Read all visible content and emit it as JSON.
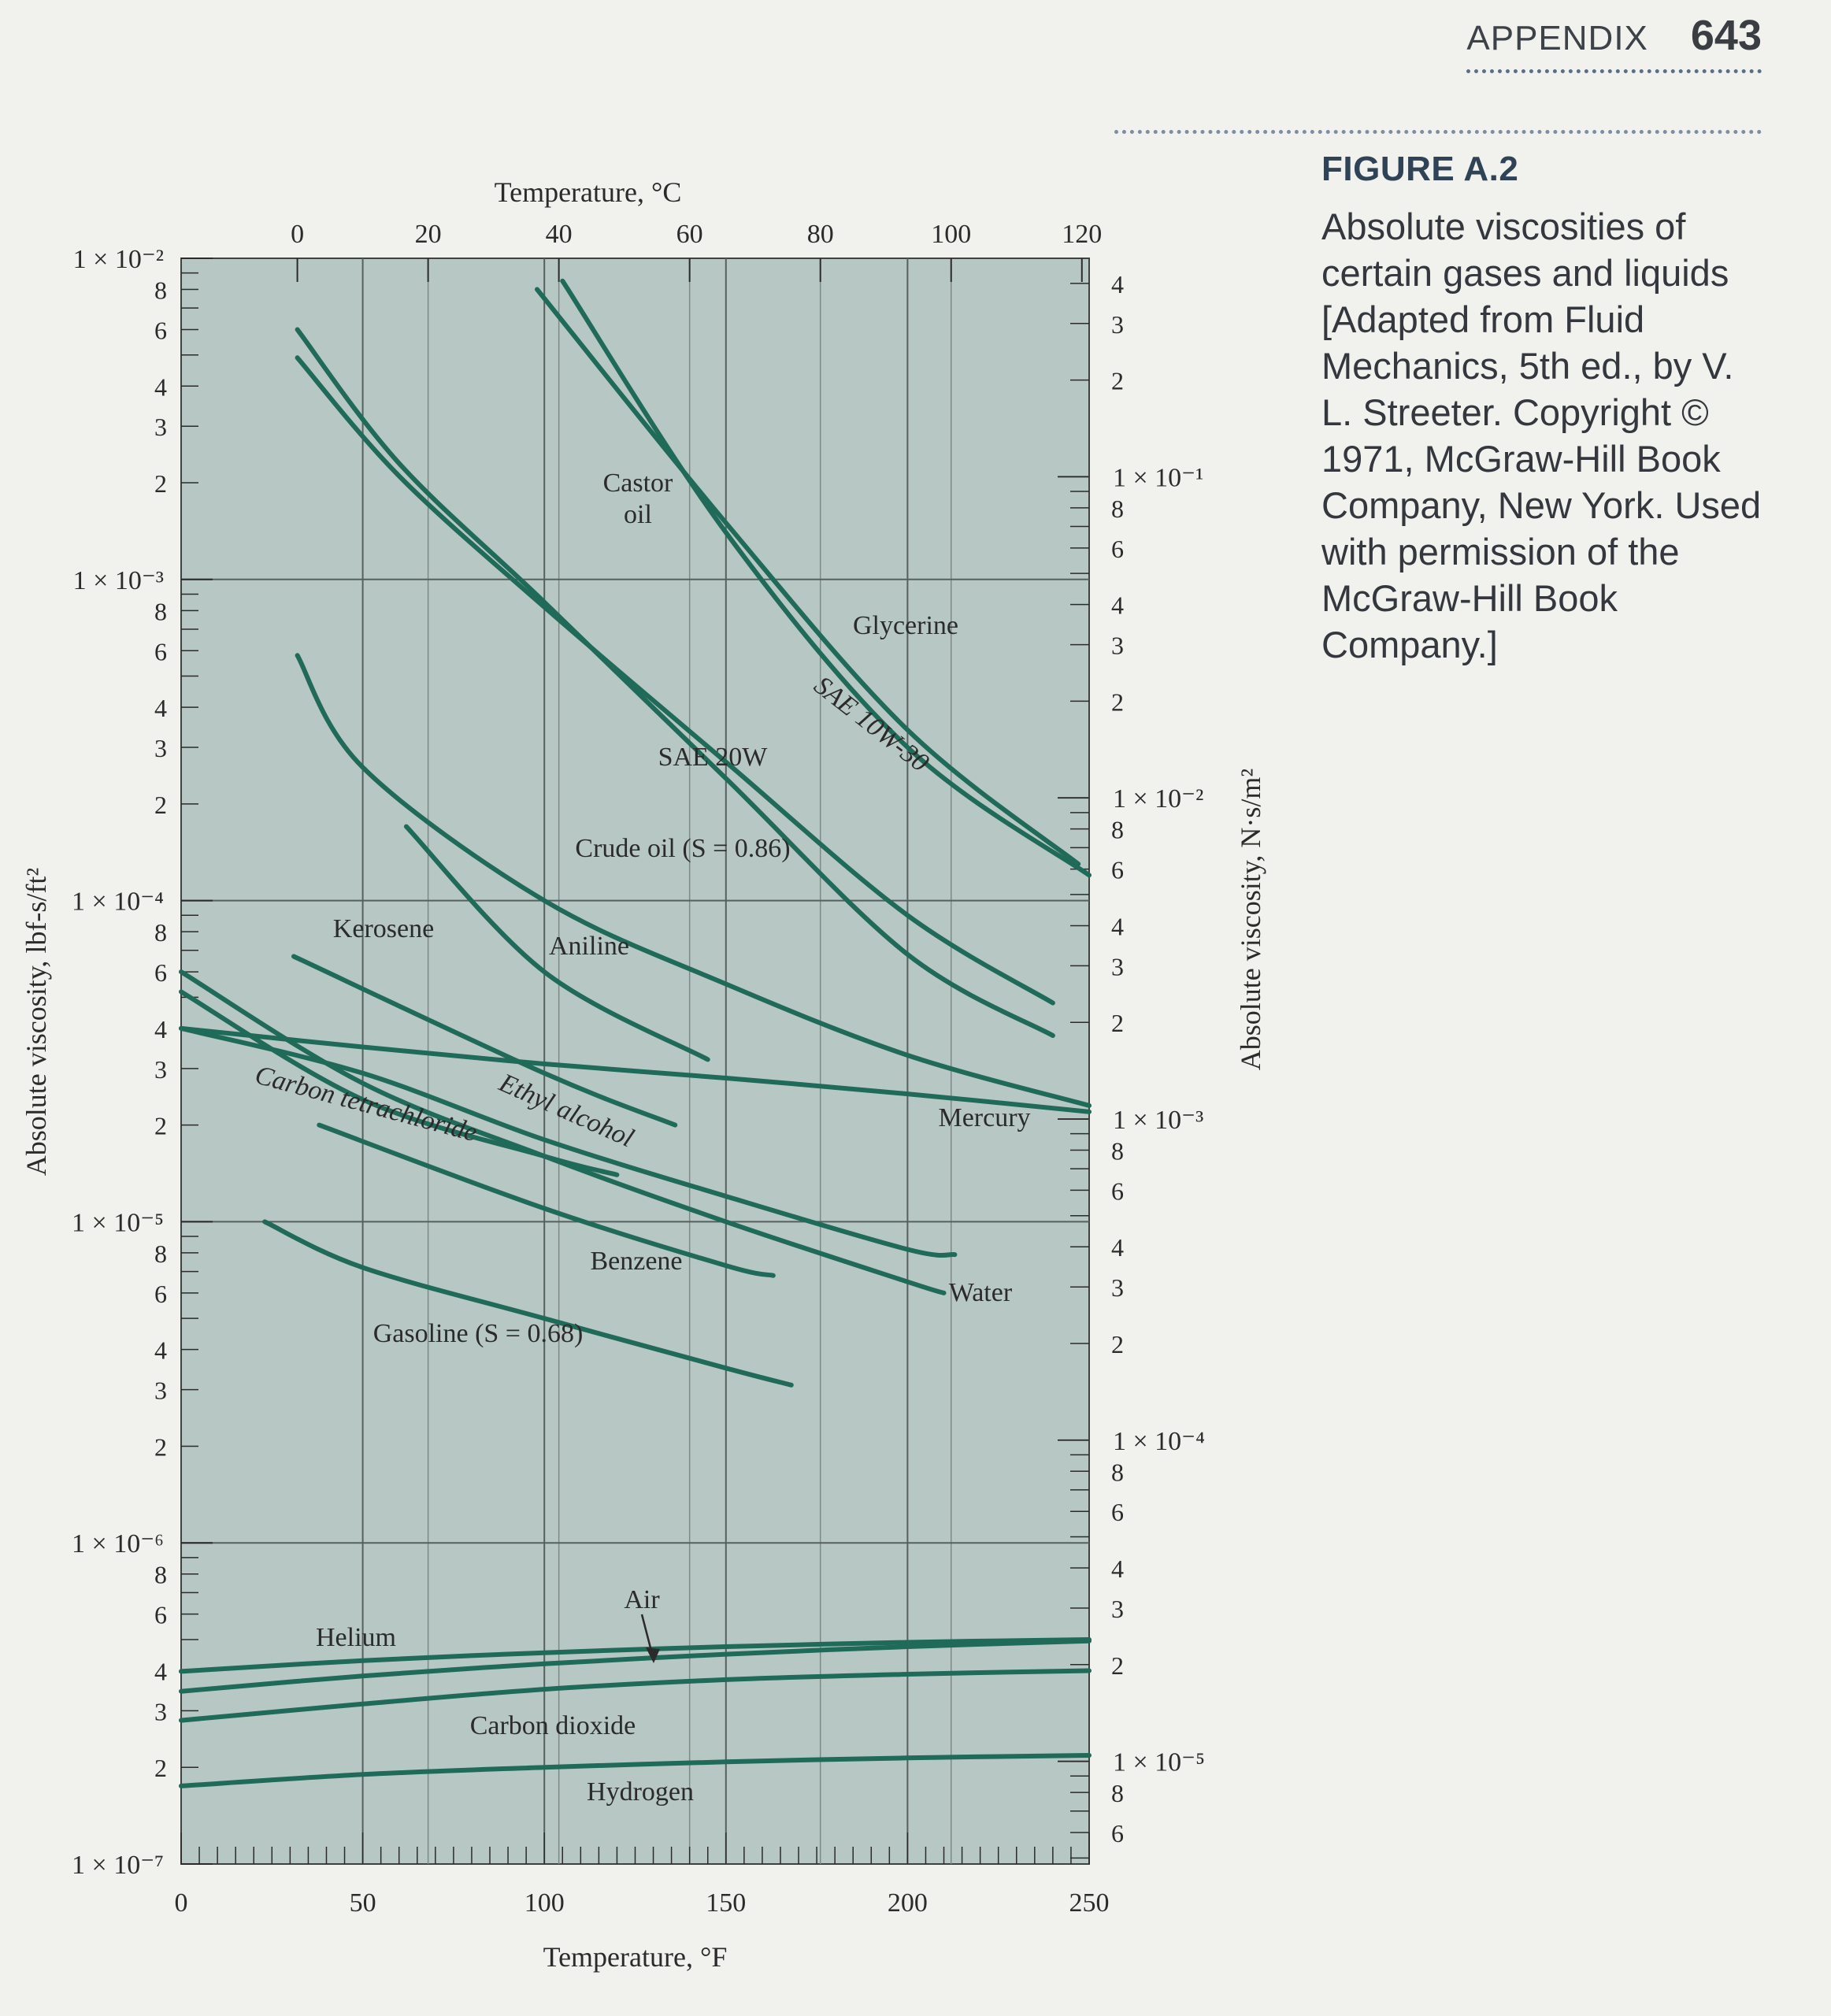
{
  "header": {
    "section": "APPENDIX",
    "page_number": "643"
  },
  "caption": {
    "figure_label": "FIGURE A.2",
    "text": "Absolute viscosities of certain gases and liquids [Adapted from Fluid Mechanics, 5th ed., by V. L. Streeter. Copyright © 1971, McGraw-Hill Book Company, New York. Used with permission of the McGraw-Hill Book Company.]"
  },
  "colors": {
    "plot_background": "#b7c7c3",
    "curve": "#1f6a58",
    "grid": "#56605e",
    "page": "#f1f2ee"
  },
  "chart_data": {
    "type": "line",
    "title": "",
    "xlabel": "Temperature, °F",
    "xlabel_top": "Temperature, °C",
    "ylabel": "Absolute viscosity, lbf-s/ft²",
    "ylabel_right": "Absolute viscosity, N·s/m²",
    "xlim_F": [
      0,
      250
    ],
    "ylim_lbf_s_ft2": [
      1e-07,
      0.01
    ],
    "y_scale": "log",
    "grid": true,
    "x_ticks_F": [
      "0",
      "50",
      "100",
      "150",
      "200",
      "250"
    ],
    "x_ticks_C": [
      "0",
      "20",
      "40",
      "60",
      "80",
      "100",
      "120"
    ],
    "y_decade_labels_left": [
      "1 × 10⁻²",
      "1 × 10⁻³",
      "1 × 10⁻⁴",
      "1 × 10⁻⁵",
      "1 × 10⁻⁶",
      "1 × 10⁻⁷"
    ],
    "y_minor_labels_left": [
      "8",
      "6",
      "4",
      "3",
      "2"
    ],
    "y_decade_labels_right": [
      "1 × 10⁻¹",
      "1 × 10⁻²",
      "1 × 10⁻³",
      "1 × 10⁻⁴",
      "1 × 10⁻⁵"
    ],
    "y_minor_labels_right": [
      "8",
      "6",
      "4",
      "3",
      "2"
    ],
    "series": [
      {
        "name": "Glycerine",
        "x": [
          105,
          150,
          200,
          250
        ],
        "y": [
          0.0085,
          0.0014,
          0.0003,
          0.00012
        ]
      },
      {
        "name": "Castor oil",
        "x": [
          32,
          60,
          100,
          150,
          200,
          240
        ],
        "y": [
          0.006,
          0.0023,
          0.00085,
          0.00024,
          6.8e-05,
          3.8e-05
        ]
      },
      {
        "name": "SAE 10W-30",
        "x": [
          98,
          150,
          200,
          247
        ],
        "y": [
          0.008,
          0.0015,
          0.00034,
          0.00013
        ]
      },
      {
        "name": "SAE 20W",
        "x": [
          32,
          60,
          100,
          150,
          200,
          240
        ],
        "y": [
          0.0049,
          0.0021,
          0.00082,
          0.00027,
          9e-05,
          4.8e-05
        ]
      },
      {
        "name": "Crude oil (S = 0.86)",
        "x": [
          32,
          50,
          100,
          150,
          200,
          250
        ],
        "y": [
          0.00058,
          0.00026,
          0.0001,
          5.5e-05,
          3.3e-05,
          2.3e-05
        ]
      },
      {
        "name": "Aniline",
        "x": [
          62,
          100,
          145
        ],
        "y": [
          0.00017,
          6e-05,
          3.2e-05
        ]
      },
      {
        "name": "Kerosene",
        "x": [
          31,
          100,
          136
        ],
        "y": [
          6.7e-05,
          2.9e-05,
          2e-05
        ]
      },
      {
        "name": "Mercury",
        "x": [
          0,
          50,
          100,
          150,
          200,
          250
        ],
        "y": [
          4e-05,
          3.5e-05,
          3.1e-05,
          2.8e-05,
          2.5e-05,
          2.2e-05
        ]
      },
      {
        "name": "Water",
        "x": [
          0,
          50,
          100,
          150,
          200,
          210
        ],
        "y": [
          6e-05,
          2.7e-05,
          1.6e-05,
          1e-05,
          6.5e-06,
          6e-06
        ]
      },
      {
        "name": "Ethyl alcohol",
        "x": [
          0,
          50,
          100,
          150,
          200,
          213
        ],
        "y": [
          4e-05,
          2.9e-05,
          1.8e-05,
          1.2e-05,
          8.2e-06,
          7.9e-06
        ]
      },
      {
        "name": "Carbon tetrachloride",
        "x": [
          0,
          50,
          100,
          120
        ],
        "y": [
          5.2e-05,
          2.4e-05,
          1.6e-05,
          1.4e-05
        ]
      },
      {
        "name": "Benzene",
        "x": [
          38,
          100,
          150,
          163
        ],
        "y": [
          2e-05,
          1.1e-05,
          7.3e-06,
          6.8e-06
        ]
      },
      {
        "name": "Gasoline (S = 0.68)",
        "x": [
          23,
          50,
          100,
          150,
          168
        ],
        "y": [
          1e-05,
          7.2e-06,
          5e-06,
          3.5e-06,
          3.1e-06
        ]
      },
      {
        "name": "Helium",
        "x": [
          0,
          50,
          100,
          150,
          200,
          250
        ],
        "y": [
          3.98e-07,
          4.3e-07,
          4.55e-07,
          4.75e-07,
          4.9e-07,
          5e-07
        ]
      },
      {
        "name": "Air",
        "x": [
          0,
          50,
          100,
          150,
          200,
          250
        ],
        "y": [
          3.45e-07,
          3.85e-07,
          4.2e-07,
          4.5e-07,
          4.75e-07,
          4.95e-07
        ]
      },
      {
        "name": "Carbon dioxide",
        "x": [
          0,
          50,
          100,
          150,
          200,
          250
        ],
        "y": [
          2.8e-07,
          3.15e-07,
          3.5e-07,
          3.75e-07,
          3.9e-07,
          4e-07
        ]
      },
      {
        "name": "Hydrogen",
        "x": [
          0,
          50,
          100,
          150,
          200,
          250
        ],
        "y": [
          1.75e-07,
          1.9e-07,
          2e-07,
          2.08e-07,
          2.14e-07,
          2.18e-07
        ]
      }
    ]
  }
}
